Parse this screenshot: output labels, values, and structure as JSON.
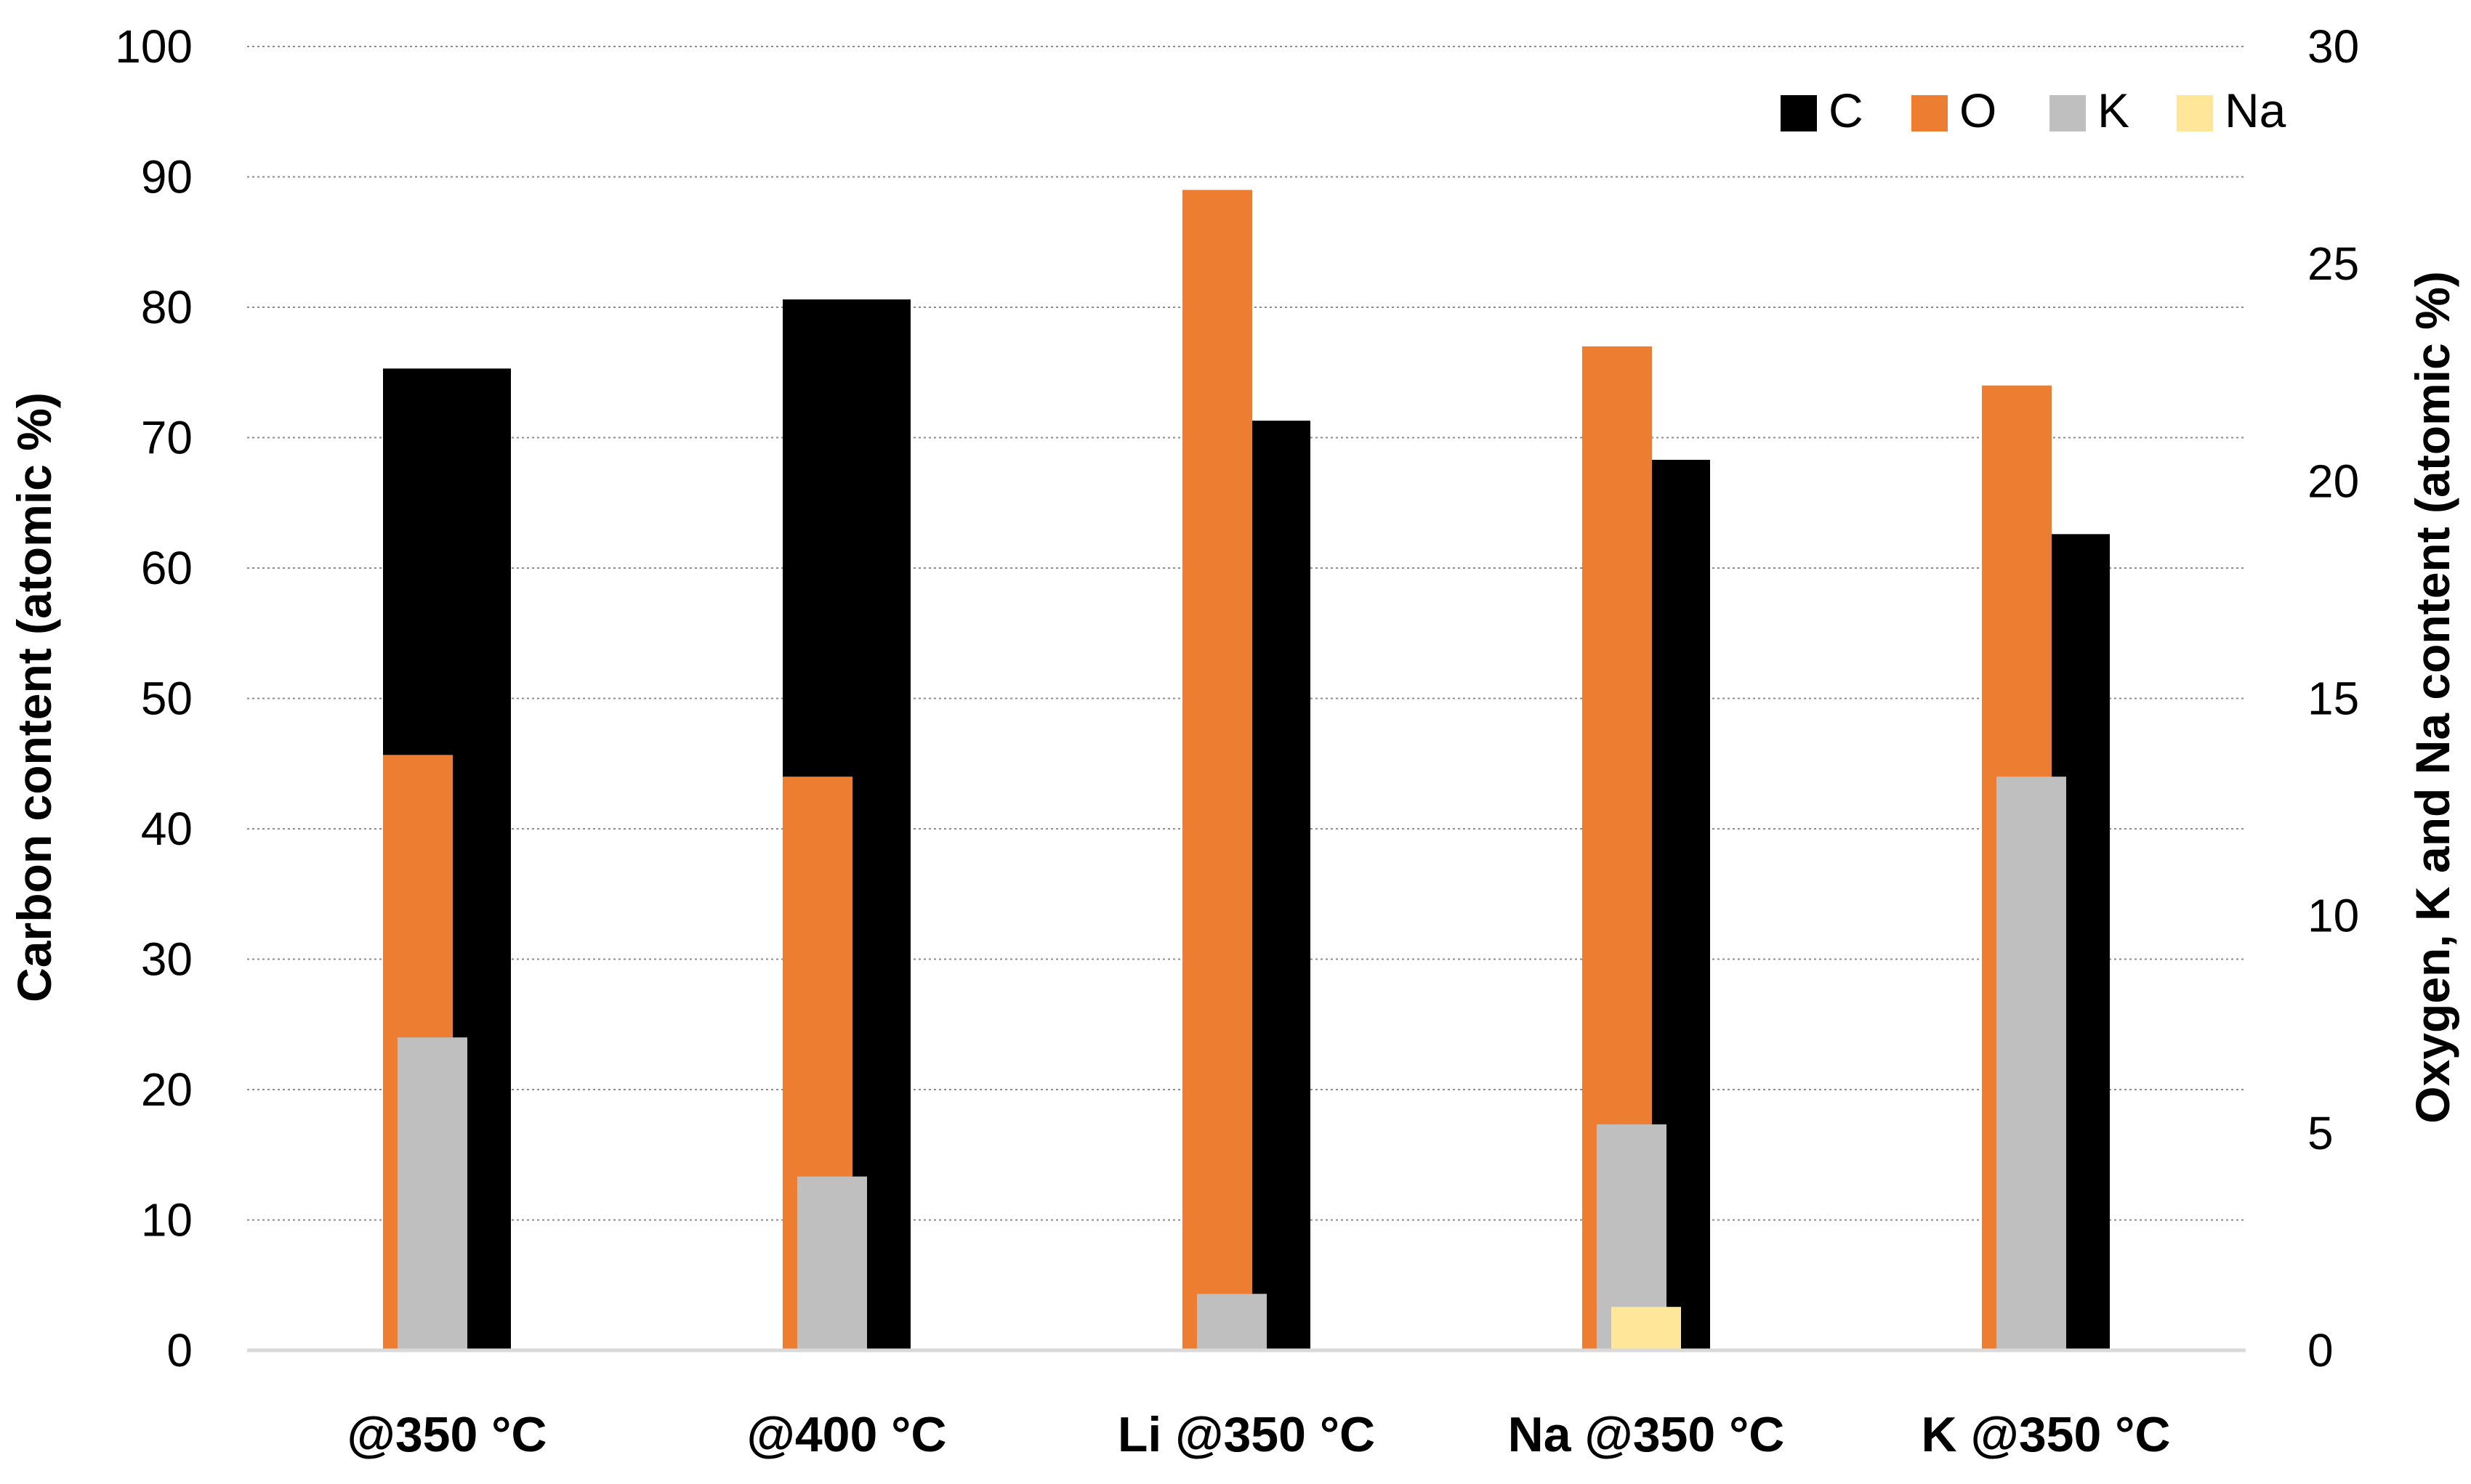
{
  "chart_data": {
    "type": "bar",
    "title": "",
    "categories": [
      "@350 °C",
      "@400 °C",
      "Li @350 °C",
      "Na @350 °C",
      "K @350 °C"
    ],
    "xlabel": "",
    "ylabel": "Carbon content (atomic %)",
    "y2label": "Oxygen, K and Na content (atomic %)",
    "ylim": [
      0,
      100
    ],
    "y2lim": [
      0,
      30
    ],
    "yticks": [
      "0",
      "10",
      "20",
      "30",
      "40",
      "50",
      "60",
      "70",
      "80",
      "90",
      "100"
    ],
    "y2ticks": [
      "0",
      "5",
      "10",
      "15",
      "20",
      "25",
      "30"
    ],
    "grid": true,
    "legend_position": "top-right",
    "series": [
      {
        "name": "C",
        "axis": "left",
        "color": "#000000",
        "values": [
          75.3,
          80.6,
          71.3,
          68.3,
          62.6
        ]
      },
      {
        "name": "O",
        "axis": "right",
        "color": "#ED7D31",
        "values": [
          13.7,
          13.2,
          26.7,
          23.1,
          22.2
        ]
      },
      {
        "name": "K",
        "axis": "right",
        "color": "#BFBFBF",
        "values": [
          7.2,
          4.0,
          1.3,
          5.2,
          13.2
        ]
      },
      {
        "name": "Na",
        "axis": "right",
        "color": "#FFE699",
        "values": [
          null,
          null,
          null,
          1.0,
          null
        ]
      }
    ]
  }
}
